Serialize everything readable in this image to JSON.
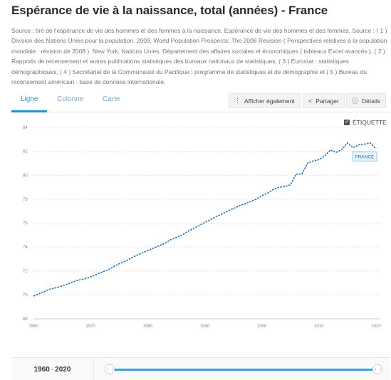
{
  "page": {
    "title": "Espérance de vie à la naissance, total (années) - France",
    "source": "Source : tiré de l'espérance de vie des hommes et des femmes à la naissance. Espérance de vie des hommes et des femmes. Source : ( 1 ) Division des Nations Unies pour la population. 2009. World Population Prospects: The 2008 Revision ( Perspectives relatives à la population mondiale : révision de 2008 ). New York, Nations Unies, Département des affaires sociales et économiques ( tableaux Excel avancés ), ( 2 ) Rapports de recensement et autres publications statistiques des bureaux nationaux de statistiques, ( 3 ) Eurostat : statistiques démographiques, ( 4 ) Secrétariat de la Communauté du Pacifique : programme de statistiques et de démographie et ( 5 ) Bureau du recensement américain : base de données internationale."
  },
  "tabs": {
    "line": "Ligne",
    "column": "Colonne",
    "map": "Carte"
  },
  "toolbar": {
    "show_also": "Afficher également",
    "share": "Partager",
    "details": "Détails"
  },
  "etiquette_label": "ÉTIQUETTE",
  "series_label": "FRANCE",
  "range": {
    "start": "1960",
    "separator": "-",
    "end": "2020",
    "start_value": 1960,
    "end_value": 2020
  },
  "colors": {
    "line": "#2a6fb0",
    "accent": "#2a8fd1",
    "grid": "#e3e3e3"
  },
  "chart_data": {
    "type": "line",
    "title": "",
    "xlabel": "",
    "ylabel": "",
    "xlim": [
      1960,
      2020
    ],
    "ylim": [
      68,
      84
    ],
    "xticks": [
      1960,
      1970,
      1980,
      1990,
      2000,
      2010,
      2020
    ],
    "yticks": [
      68,
      70,
      72,
      74,
      76,
      78,
      80,
      82,
      84
    ],
    "grid": true,
    "legend": "none",
    "series": [
      {
        "name": "FRANCE",
        "x": [
          1960,
          1961,
          1962,
          1963,
          1964,
          1965,
          1966,
          1967,
          1968,
          1969,
          1970,
          1971,
          1972,
          1973,
          1974,
          1975,
          1976,
          1977,
          1978,
          1979,
          1980,
          1981,
          1982,
          1983,
          1984,
          1985,
          1986,
          1987,
          1988,
          1989,
          1990,
          1991,
          1992,
          1993,
          1994,
          1995,
          1996,
          1997,
          1998,
          1999,
          2000,
          2001,
          2002,
          2003,
          2004,
          2005,
          2006,
          2007,
          2008,
          2009,
          2010,
          2011,
          2012,
          2013,
          2014,
          2015,
          2016,
          2017,
          2018,
          2019,
          2020
        ],
        "y": [
          69.9,
          70.1,
          70.3,
          70.5,
          70.6,
          70.75,
          70.9,
          71.1,
          71.25,
          71.35,
          71.5,
          71.7,
          71.9,
          72.1,
          72.35,
          72.6,
          72.8,
          73.05,
          73.3,
          73.5,
          73.7,
          73.9,
          74.1,
          74.3,
          74.6,
          74.8,
          75.0,
          75.3,
          75.55,
          75.8,
          76.05,
          76.3,
          76.55,
          76.75,
          77.0,
          77.2,
          77.45,
          77.6,
          77.8,
          78.0,
          78.3,
          78.5,
          78.8,
          79.0,
          79.05,
          79.2,
          80.1,
          80.1,
          81.0,
          81.2,
          81.3,
          81.6,
          82.1,
          81.9,
          82.15,
          82.7,
          82.3,
          82.55,
          82.6,
          82.7,
          82.2
        ]
      }
    ]
  }
}
